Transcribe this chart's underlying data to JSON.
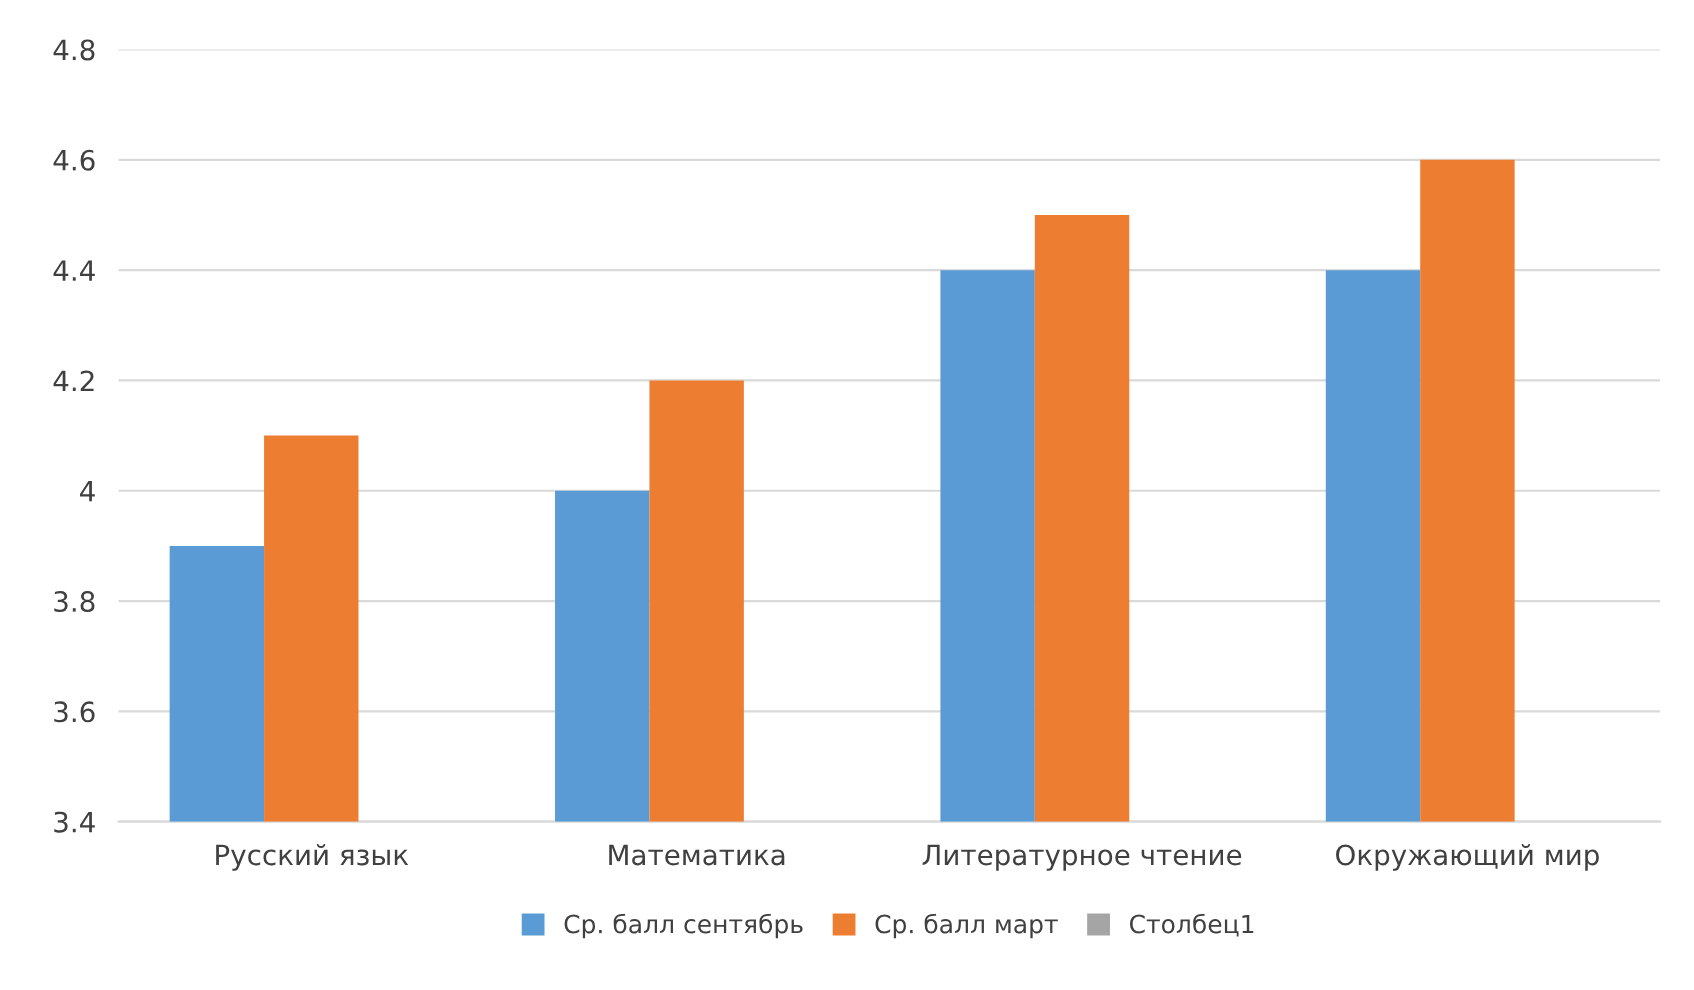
{
  "chart_data": {
    "type": "bar",
    "categories": [
      "Русский язык",
      "Математика",
      "Литературное чтение",
      "Окружающий мир"
    ],
    "series": [
      {
        "name": "Ср. балл сентябрь",
        "color": "#5b9bd5",
        "values": [
          3.9,
          4.0,
          4.4,
          4.4
        ]
      },
      {
        "name": "Ср. балл март",
        "color": "#ed7d31",
        "values": [
          4.1,
          4.2,
          4.5,
          4.6
        ]
      },
      {
        "name": "Столбец1",
        "color": "#a5a5a5",
        "values": [
          null,
          null,
          null,
          null
        ]
      }
    ],
    "ylim": [
      3.4,
      4.8
    ],
    "yticks": [
      3.4,
      3.6,
      3.8,
      4,
      4.2,
      4.4,
      4.6,
      4.8
    ],
    "grid": "y",
    "legend": "bottom"
  }
}
